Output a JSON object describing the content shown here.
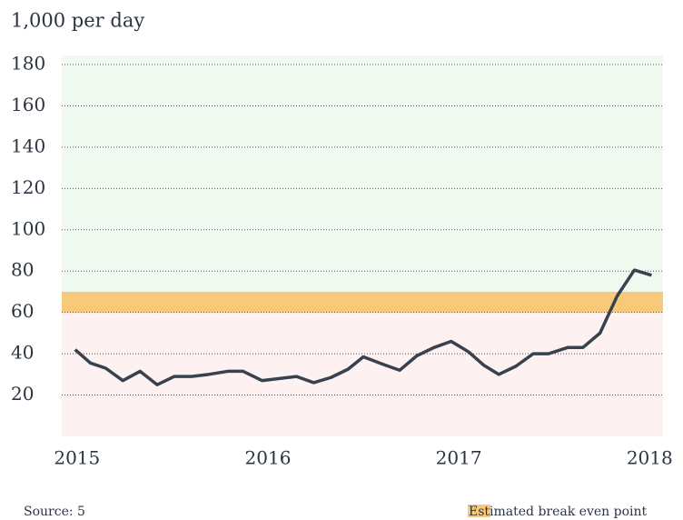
{
  "chart_data": {
    "type": "line",
    "y_label": "1,000 per day",
    "source": "Source: 5",
    "x": [
      2014.99,
      2015.07,
      2015.15,
      2015.24,
      2015.33,
      2015.42,
      2015.51,
      2015.6,
      2015.69,
      2015.79,
      2015.87,
      2015.97,
      2016.06,
      2016.15,
      2016.24,
      2016.33,
      2016.42,
      2016.5,
      2016.6,
      2016.69,
      2016.78,
      2016.87,
      2016.96,
      2017.05,
      2017.13,
      2017.21,
      2017.3,
      2017.39,
      2017.47,
      2017.57,
      2017.65,
      2017.74,
      2017.83,
      2017.92,
      2018.01
    ],
    "series": [
      {
        "color": "#37424e",
        "values": [
          42,
          35.5,
          33,
          27,
          31.5,
          25,
          29,
          29,
          30,
          31.5,
          31.5,
          27,
          28,
          29,
          26,
          28.5,
          32.5,
          38.5,
          35,
          32,
          39,
          43,
          46,
          41,
          34.5,
          30,
          34,
          40,
          40,
          43,
          43,
          50,
          68,
          80.5,
          78
        ]
      }
    ],
    "xlim": [
      2014.92,
      2018.07
    ],
    "xticks": [
      2015,
      2016,
      2017,
      2018
    ],
    "ylim": [
      0,
      180
    ],
    "yticks": [
      20,
      40,
      60,
      80,
      100,
      120,
      140,
      160,
      180
    ],
    "grid": true,
    "band": {
      "name": "Estimated break even point",
      "range": [
        60,
        70
      ],
      "color": "#f7ca7a",
      "above_color": "#f0faf0",
      "below_color": "#fdf1f1"
    },
    "legend": "bottom-right"
  }
}
